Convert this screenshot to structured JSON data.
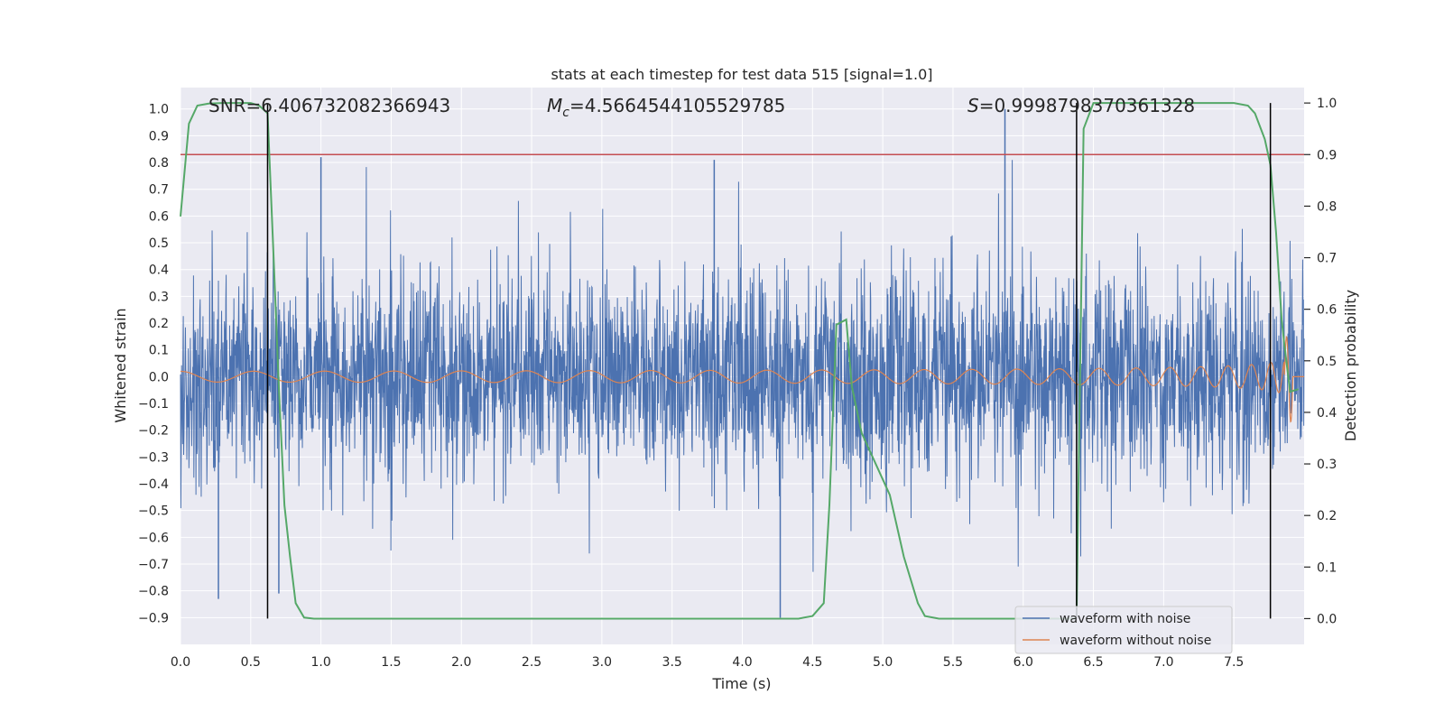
{
  "chart_data": {
    "type": "line",
    "title": "stats at each timestep for test data 515 [signal=1.0]",
    "xlabel": "Time (s)",
    "ylabel": "Whitened strain",
    "ylabel_right": "Detection probability",
    "xlim": [
      0.0,
      8.0
    ],
    "ylim": [
      -1.0,
      1.08
    ],
    "ylim_right": [
      -0.05,
      1.03
    ],
    "x_ticks": [
      "0.0",
      "0.5",
      "1.0",
      "1.5",
      "2.0",
      "2.5",
      "3.0",
      "3.5",
      "4.0",
      "4.5",
      "5.0",
      "5.5",
      "6.0",
      "6.5",
      "7.0",
      "7.5"
    ],
    "y_ticks": [
      "−0.9",
      "−0.8",
      "−0.7",
      "−0.6",
      "−0.5",
      "−0.4",
      "−0.3",
      "−0.2",
      "−0.1",
      "0.0",
      "0.1",
      "0.2",
      "0.3",
      "0.4",
      "0.5",
      "0.6",
      "0.7",
      "0.8",
      "0.9",
      "1.0"
    ],
    "y_right_ticks": [
      "0.0",
      "0.1",
      "0.2",
      "0.3",
      "0.4",
      "0.5",
      "0.6",
      "0.7",
      "0.8",
      "0.9",
      "1.0"
    ],
    "annotations": {
      "snr": "SNR=6.406732082366943",
      "mc_symbol": "M",
      "mc_sub": "c",
      "mc_value": "=4.5664544105529785",
      "s_symbol": "S",
      "s_value": "=0.9998798370361328"
    },
    "threshold_right": 0.9,
    "vertical_lines_x": [
      0.62,
      6.38,
      7.76
    ],
    "noise_envelope": {
      "typical_amplitude": 0.45,
      "max_peak": 1.0,
      "min_trough": -0.9
    },
    "clean_waveform": {
      "amplitude_start": 0.02,
      "amplitude_end": 0.06,
      "peak_time": 7.9,
      "peak_value": 0.15,
      "trough_value": -0.17
    },
    "detection_probability": {
      "x": [
        0.0,
        0.06,
        0.12,
        0.2,
        0.3,
        0.4,
        0.5,
        0.56,
        0.62,
        0.66,
        0.7,
        0.74,
        0.78,
        0.82,
        0.88,
        0.95,
        1.5,
        2.5,
        3.5,
        4.4,
        4.5,
        4.58,
        4.62,
        4.67,
        4.74,
        4.78,
        4.85,
        4.95,
        5.05,
        5.15,
        5.25,
        5.3,
        5.4,
        6.0,
        6.36,
        6.38,
        6.43,
        6.5,
        6.6,
        7.0,
        7.5,
        7.6,
        7.65,
        7.72,
        7.76,
        7.8,
        7.84,
        7.86,
        7.9,
        7.96
      ],
      "values": [
        0.78,
        0.96,
        0.995,
        0.999,
        1.0,
        1.0,
        1.0,
        0.995,
        0.98,
        0.72,
        0.45,
        0.22,
        0.12,
        0.03,
        0.002,
        0.0,
        0.0,
        0.0,
        0.0,
        0.0,
        0.005,
        0.03,
        0.22,
        0.57,
        0.58,
        0.45,
        0.36,
        0.3,
        0.24,
        0.12,
        0.03,
        0.005,
        0.0,
        0.0,
        0.0,
        0.005,
        0.95,
        1.0,
        1.0,
        1.0,
        1.0,
        0.995,
        0.98,
        0.93,
        0.88,
        0.75,
        0.58,
        0.53,
        0.44,
        0.445
      ]
    },
    "series": [
      {
        "name": "waveform with noise",
        "color": "#4c72b0"
      },
      {
        "name": "waveform without noise",
        "color": "#dd8452"
      },
      {
        "name": "detection probability",
        "color": "#55a868"
      }
    ],
    "threshold_color": "#c44e52",
    "background_color": "#eaeaf2"
  }
}
